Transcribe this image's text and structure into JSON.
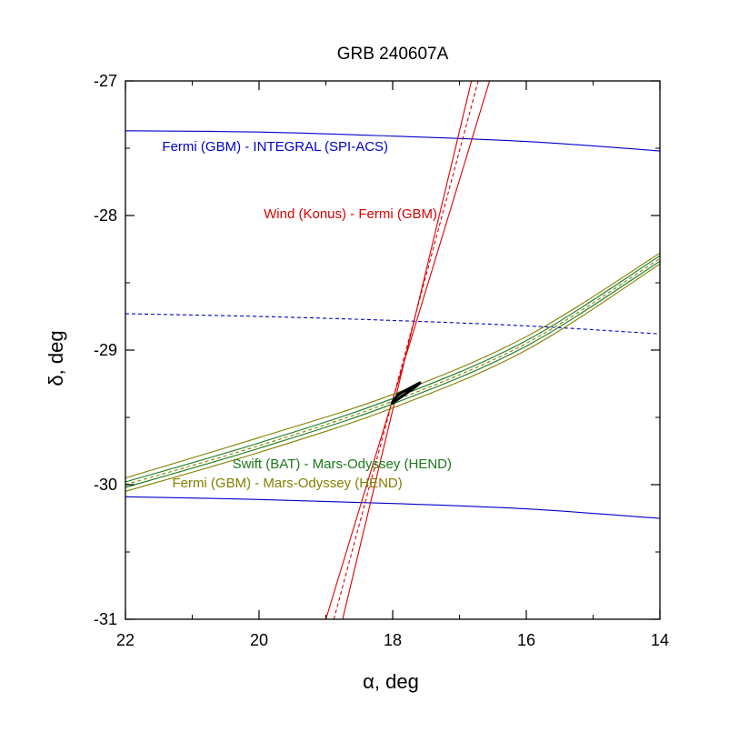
{
  "chart_data": {
    "type": "line",
    "title": "GRB 240607A",
    "xlabel": "α, deg",
    "ylabel": "δ, deg",
    "xlim": [
      22,
      14
    ],
    "ylim": [
      -31,
      -27
    ],
    "x_ticks": [
      22,
      20,
      18,
      16,
      14
    ],
    "y_ticks": [
      -27,
      -28,
      -29,
      -30,
      -31
    ],
    "x_tick_labels": [
      "22",
      "20",
      "18",
      "16",
      "14"
    ],
    "y_tick_labels": [
      "-27",
      "-28",
      "-29",
      "-30",
      "-31"
    ],
    "grid": false,
    "colors": {
      "fermi_integral": "#0000cc",
      "wind_fermi": "#dd0000",
      "swift_odyssey": "#1a7a1a",
      "fermi_odyssey": "#808000",
      "box": "#000000"
    },
    "annotations": [
      {
        "text": "Fermi (GBM) - INTEGRAL (SPI-ACS)",
        "x": 21.45,
        "y": -27.52,
        "color": "#0000cc"
      },
      {
        "text": "Wind (Konus) - Fermi (GBM)",
        "x": 19.93,
        "y": -28.02,
        "color": "#dd0000"
      },
      {
        "text": "Swift (BAT) - Mars-Odyssey (HEND)",
        "x": 20.4,
        "y": -29.88,
        "color": "#1a7a1a"
      },
      {
        "text": "Fermi (GBM) - Mars-Odyssey (HEND)",
        "x": 21.3,
        "y": -30.02,
        "color": "#808000"
      }
    ],
    "series": [
      {
        "x": [
          22,
          20,
          18,
          16,
          14
        ],
        "y": [
          -27.37,
          -27.38,
          -27.41,
          -27.45,
          -27.52
        ],
        "color": "#0000cc",
        "style": "solid"
      },
      {
        "x": [
          22,
          20,
          18,
          16,
          14
        ],
        "y": [
          -28.73,
          -28.75,
          -28.78,
          -28.82,
          -28.88
        ],
        "color": "#0000cc",
        "style": "dashed"
      },
      {
        "x": [
          22,
          20,
          18,
          16,
          14
        ],
        "y": [
          -30.09,
          -30.11,
          -30.14,
          -30.18,
          -30.25
        ],
        "color": "#0000cc",
        "style": "solid"
      },
      {
        "x": [
          19.0,
          16.55
        ],
        "y": [
          -31.0,
          -27.0
        ],
        "color": "#dd0000",
        "style": "solid"
      },
      {
        "x": [
          18.88,
          16.72
        ],
        "y": [
          -31.0,
          -27.0
        ],
        "color": "#dd0000",
        "style": "dashed"
      },
      {
        "x": [
          18.75,
          16.82
        ],
        "y": [
          -31.0,
          -27.0
        ],
        "color": "#dd0000",
        "style": "solid"
      },
      {
        "x": [
          22,
          20,
          18,
          16,
          14
        ],
        "y": [
          -29.95,
          -29.65,
          -29.33,
          -28.9,
          -28.28
        ],
        "color": "#808000",
        "style": "solid"
      },
      {
        "x": [
          22,
          20,
          18,
          16,
          14
        ],
        "y": [
          -30.0,
          -29.71,
          -29.38,
          -28.95,
          -28.32
        ],
        "color": "#808000",
        "style": "dashed"
      },
      {
        "x": [
          22,
          20,
          18,
          16,
          14
        ],
        "y": [
          -30.05,
          -29.76,
          -29.43,
          -29.0,
          -28.36
        ],
        "color": "#808000",
        "style": "solid"
      },
      {
        "x": [
          22,
          20,
          18,
          16,
          14
        ],
        "y": [
          -29.98,
          -29.69,
          -29.36,
          -28.93,
          -28.3
        ],
        "color": "#1a7a1a",
        "style": "solid"
      },
      {
        "x": [
          22,
          20,
          18,
          16,
          14
        ],
        "y": [
          -30.02,
          -29.73,
          -29.4,
          -28.97,
          -28.34
        ],
        "color": "#1a7a1a",
        "style": "solid"
      },
      {
        "x": [
          18.02,
          17.65,
          17.58,
          17.92,
          18.02
        ],
        "y": [
          -29.4,
          -29.27,
          -29.24,
          -29.33,
          -29.4
        ],
        "color": "#000000",
        "style": "box"
      }
    ]
  }
}
